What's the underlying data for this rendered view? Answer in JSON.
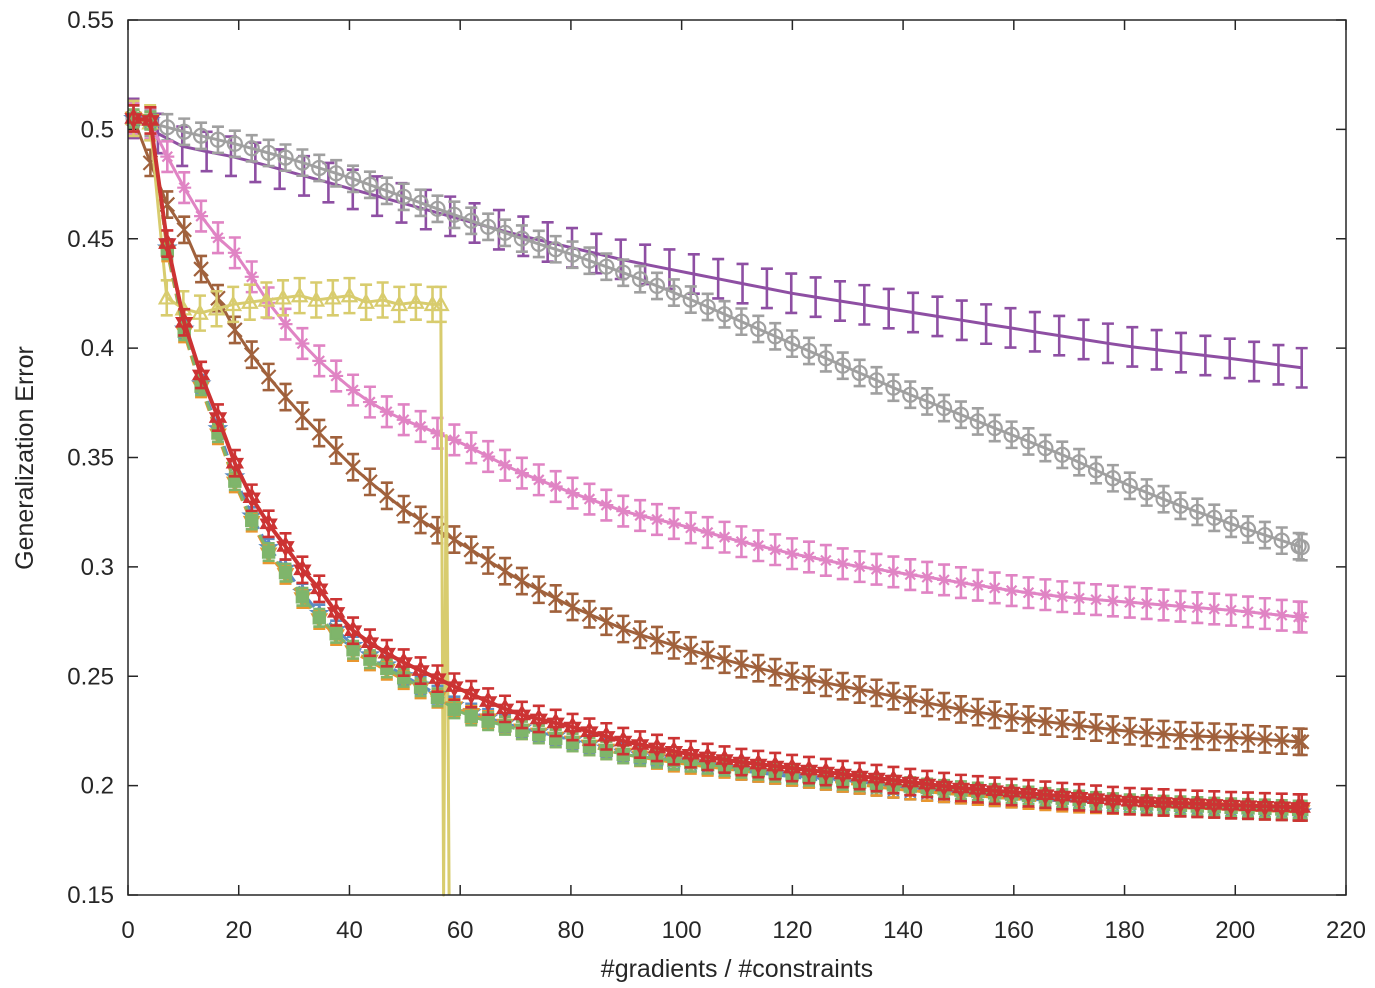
{
  "chart_data": {
    "type": "line",
    "title": "",
    "xlabel": "#gradients / #constraints",
    "ylabel": "Generalization Error",
    "xlim": [
      0,
      220
    ],
    "ylim": [
      0.15,
      0.55
    ],
    "grid": false,
    "x_ticks": [
      0,
      20,
      40,
      60,
      80,
      100,
      120,
      140,
      160,
      180,
      200,
      220
    ],
    "y_ticks": [
      0.15,
      0.2,
      0.25,
      0.3,
      0.35,
      0.4,
      0.45,
      0.5,
      0.55
    ],
    "x_tick_labels": [
      "0",
      "20",
      "40",
      "60",
      "80",
      "100",
      "120",
      "140",
      "160",
      "180",
      "200",
      "220"
    ],
    "y_tick_labels": [
      "0.15",
      "0.2",
      "0.25",
      "0.3",
      "0.35",
      "0.4",
      "0.45",
      "0.5",
      "0.55"
    ],
    "series": [
      {
        "name": "purple",
        "color": "#8e4fa3",
        "marker": "none",
        "dash": "solid",
        "x": [
          1,
          4,
          10,
          20,
          30,
          40,
          50,
          60,
          70,
          80,
          90,
          100,
          110,
          120,
          130,
          140,
          150,
          160,
          170,
          180,
          190,
          200,
          212
        ],
        "y": [
          0.505,
          0.5,
          0.492,
          0.487,
          0.48,
          0.473,
          0.466,
          0.459,
          0.452,
          0.446,
          0.44,
          0.435,
          0.43,
          0.425,
          0.421,
          0.417,
          0.413,
          0.409,
          0.405,
          0.401,
          0.398,
          0.395,
          0.391
        ],
        "err": 0.009
      },
      {
        "name": "gray",
        "color": "#a0a0a0",
        "marker": "circle",
        "dash": "solid",
        "x": [
          1,
          4,
          10,
          20,
          30,
          40,
          50,
          60,
          70,
          80,
          90,
          100,
          110,
          120,
          130,
          140,
          150,
          160,
          170,
          180,
          190,
          200,
          212
        ],
        "y": [
          0.505,
          0.503,
          0.499,
          0.493,
          0.486,
          0.478,
          0.469,
          0.46,
          0.451,
          0.443,
          0.434,
          0.424,
          0.413,
          0.402,
          0.391,
          0.38,
          0.37,
          0.36,
          0.35,
          0.338,
          0.328,
          0.319,
          0.309
        ],
        "err": 0.006
      },
      {
        "name": "pink",
        "color": "#e084c4",
        "marker": "asterisk",
        "dash": "solid",
        "x": [
          1,
          4,
          7,
          10,
          13,
          16,
          20,
          25,
          30,
          35,
          40,
          45,
          50,
          55,
          60,
          70,
          80,
          90,
          100,
          110,
          120,
          130,
          140,
          150,
          160,
          170,
          180,
          190,
          200,
          212
        ],
        "y": [
          0.505,
          0.503,
          0.488,
          0.474,
          0.461,
          0.451,
          0.442,
          0.422,
          0.406,
          0.393,
          0.382,
          0.373,
          0.367,
          0.362,
          0.357,
          0.344,
          0.334,
          0.325,
          0.319,
          0.312,
          0.306,
          0.301,
          0.297,
          0.293,
          0.289,
          0.286,
          0.284,
          0.282,
          0.28,
          0.277
        ],
        "err": 0.007
      },
      {
        "name": "brown",
        "color": "#a0613c",
        "marker": "x",
        "dash": "solid",
        "x": [
          1,
          4,
          7,
          10,
          13,
          16,
          20,
          25,
          30,
          35,
          40,
          45,
          50,
          55,
          60,
          70,
          80,
          90,
          100,
          110,
          120,
          130,
          140,
          150,
          160,
          170,
          180,
          190,
          200,
          212
        ],
        "y": [
          0.505,
          0.485,
          0.466,
          0.455,
          0.437,
          0.424,
          0.405,
          0.388,
          0.373,
          0.36,
          0.347,
          0.336,
          0.326,
          0.318,
          0.311,
          0.295,
          0.282,
          0.271,
          0.263,
          0.256,
          0.25,
          0.245,
          0.24,
          0.235,
          0.231,
          0.228,
          0.225,
          0.223,
          0.222,
          0.22
        ],
        "err": 0.006
      },
      {
        "name": "yellow",
        "color": "#d8cc6e",
        "marker": "triangle",
        "dash": "solid",
        "x": [
          1,
          4,
          7,
          10,
          13,
          16,
          19,
          22,
          25,
          28,
          31,
          34,
          37,
          40,
          43,
          46,
          49,
          52,
          55,
          56.5,
          57,
          57.5,
          58
        ],
        "y": [
          0.505,
          0.503,
          0.423,
          0.418,
          0.416,
          0.418,
          0.42,
          0.421,
          0.422,
          0.423,
          0.424,
          0.422,
          0.423,
          0.424,
          0.421,
          0.422,
          0.42,
          0.421,
          0.42,
          0.42,
          0.15,
          0.36,
          0.15
        ],
        "err": 0.008
      },
      {
        "name": "blue",
        "color": "#5b8cc4",
        "marker": "star",
        "dash": "dashed",
        "x": [
          1,
          4,
          7,
          10,
          13,
          16,
          19,
          22,
          25,
          28,
          31,
          34,
          37,
          40,
          45,
          50,
          55,
          60,
          70,
          80,
          90,
          100,
          110,
          120,
          130,
          140,
          150,
          160,
          170,
          180,
          190,
          200,
          212
        ],
        "y": [
          0.505,
          0.505,
          0.447,
          0.41,
          0.385,
          0.365,
          0.343,
          0.325,
          0.31,
          0.301,
          0.29,
          0.28,
          0.273,
          0.265,
          0.258,
          0.25,
          0.243,
          0.235,
          0.227,
          0.221,
          0.215,
          0.211,
          0.207,
          0.204,
          0.201,
          0.198,
          0.196,
          0.194,
          0.193,
          0.192,
          0.19,
          0.189,
          0.188
        ],
        "err": 0.004
      },
      {
        "name": "orange",
        "color": "#e8962e",
        "marker": "triangle-down",
        "dash": "dashed",
        "x": [
          1,
          4,
          7,
          10,
          13,
          16,
          19,
          22,
          25,
          28,
          31,
          34,
          37,
          40,
          45,
          50,
          55,
          60,
          70,
          80,
          90,
          100,
          110,
          120,
          130,
          140,
          150,
          160,
          170,
          180,
          190,
          200,
          212
        ],
        "y": [
          0.505,
          0.505,
          0.445,
          0.408,
          0.383,
          0.362,
          0.34,
          0.322,
          0.307,
          0.298,
          0.287,
          0.277,
          0.27,
          0.262,
          0.255,
          0.248,
          0.241,
          0.234,
          0.226,
          0.22,
          0.214,
          0.21,
          0.207,
          0.204,
          0.201,
          0.198,
          0.196,
          0.194,
          0.192,
          0.191,
          0.19,
          0.189,
          0.188
        ],
        "err": 0.004
      },
      {
        "name": "green",
        "color": "#7fb56b",
        "marker": "square",
        "dash": "dashed",
        "x": [
          1,
          4,
          7,
          10,
          13,
          16,
          19,
          22,
          25,
          28,
          31,
          34,
          37,
          40,
          45,
          50,
          55,
          60,
          70,
          80,
          90,
          100,
          110,
          120,
          130,
          140,
          150,
          160,
          170,
          180,
          190,
          200,
          212
        ],
        "y": [
          0.505,
          0.505,
          0.446,
          0.409,
          0.384,
          0.363,
          0.341,
          0.323,
          0.308,
          0.299,
          0.288,
          0.278,
          0.271,
          0.263,
          0.256,
          0.249,
          0.242,
          0.233,
          0.226,
          0.22,
          0.214,
          0.211,
          0.208,
          0.205,
          0.202,
          0.2,
          0.198,
          0.196,
          0.194,
          0.192,
          0.191,
          0.19,
          0.189
        ],
        "err": 0.004
      },
      {
        "name": "red",
        "color": "#cc3333",
        "marker": "hexagram",
        "dash": "solid",
        "x": [
          1,
          4,
          7,
          10,
          13,
          16,
          19,
          22,
          25,
          28,
          31,
          34,
          37,
          40,
          45,
          50,
          55,
          60,
          70,
          80,
          90,
          100,
          110,
          120,
          130,
          140,
          150,
          160,
          170,
          180,
          190,
          200,
          212
        ],
        "y": [
          0.505,
          0.505,
          0.449,
          0.413,
          0.389,
          0.37,
          0.349,
          0.333,
          0.321,
          0.311,
          0.3,
          0.292,
          0.281,
          0.272,
          0.263,
          0.256,
          0.25,
          0.244,
          0.233,
          0.227,
          0.22,
          0.215,
          0.211,
          0.208,
          0.205,
          0.202,
          0.199,
          0.197,
          0.195,
          0.193,
          0.192,
          0.191,
          0.19
        ],
        "err": 0.006
      }
    ]
  }
}
